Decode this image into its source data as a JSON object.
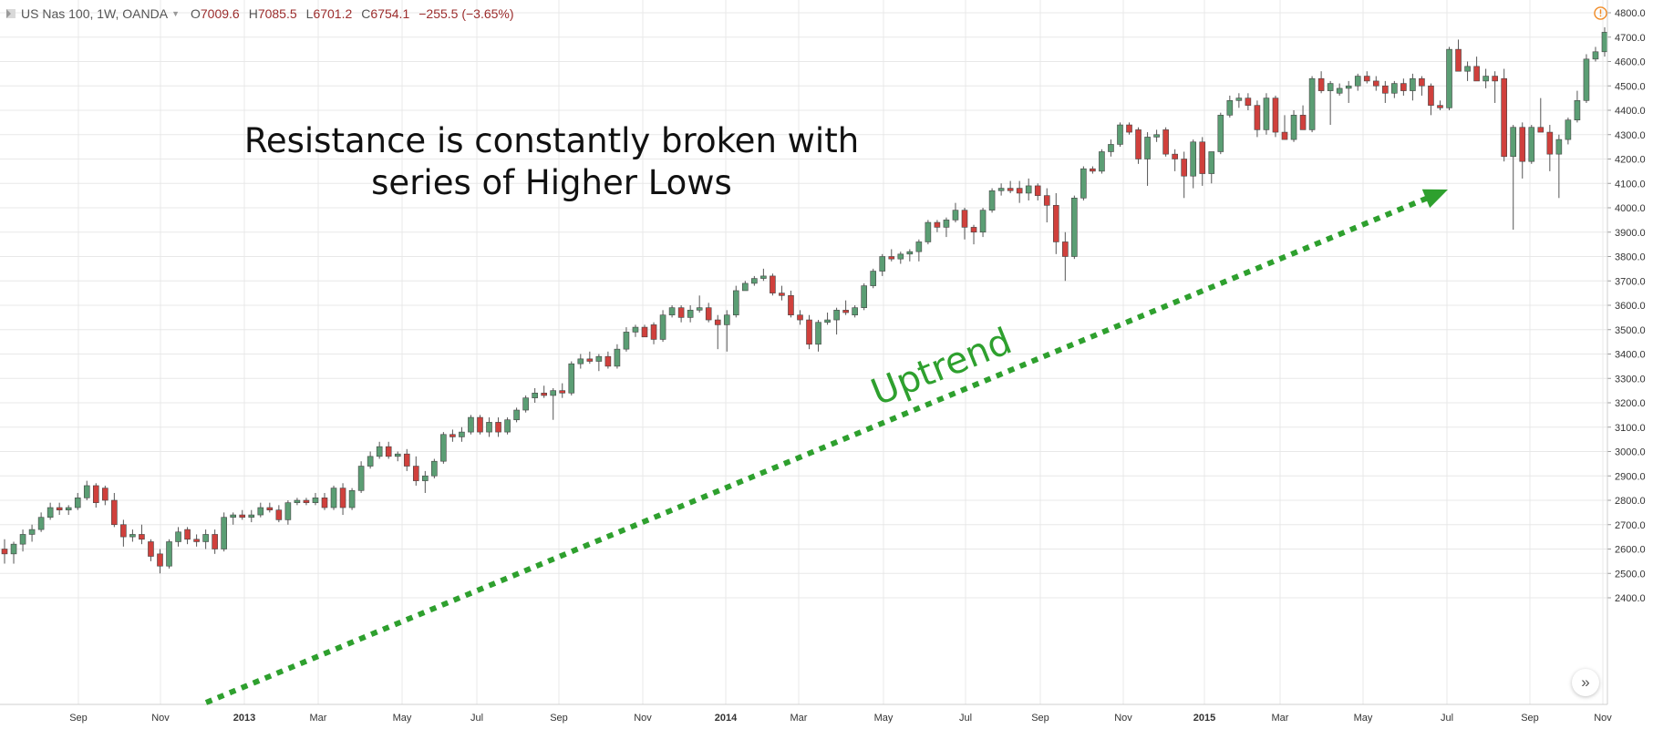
{
  "header": {
    "symbol": "US Nas 100, 1W, OANDA",
    "open_label": "O",
    "open": "7009.6",
    "high_label": "H",
    "high": "7085.5",
    "low_label": "L",
    "low": "6701.2",
    "close_label": "C",
    "close": "6754.1",
    "change": "−255.5 (−3.65%)"
  },
  "annotation": {
    "line1": "Resistance is constantly broken with",
    "line2": "series of Higher Lows",
    "trend_label": "Uptrend"
  },
  "colors": {
    "up": "#5b9e74",
    "down": "#d0403c",
    "wick": "#555555",
    "grid": "#e8e8e8",
    "trend": "#2ea02e",
    "axis_text": "#333333",
    "warning": "#f08a24"
  },
  "icons": {
    "navigate": "double-chevron-right-icon",
    "warning": "alert-circle-icon"
  },
  "chart_data": {
    "type": "candlestick",
    "title": "US Nas 100, 1W, OANDA",
    "y_ticks": [
      2400,
      2500,
      2600,
      2700,
      2800,
      2900,
      3000,
      3100,
      3200,
      3300,
      3400,
      3500,
      3600,
      3700,
      3800,
      3900,
      4000,
      4100,
      4200,
      4300,
      4400,
      4500,
      4600,
      4700,
      4800
    ],
    "ylim": [
      2360,
      4860
    ],
    "x_tick_labels": [
      "Sep",
      "Nov",
      "2013",
      "Mar",
      "May",
      "Jul",
      "Sep",
      "Nov",
      "2014",
      "Mar",
      "May",
      "Jul",
      "Sep",
      "Nov",
      "2015",
      "Mar",
      "May",
      "Jul",
      "Sep",
      "Nov"
    ],
    "grid": true,
    "candles": [
      [
        2600,
        2640,
        2540,
        2580
      ],
      [
        2580,
        2630,
        2540,
        2620
      ],
      [
        2620,
        2680,
        2590,
        2660
      ],
      [
        2660,
        2700,
        2630,
        2680
      ],
      [
        2680,
        2750,
        2670,
        2730
      ],
      [
        2730,
        2790,
        2720,
        2770
      ],
      [
        2770,
        2790,
        2740,
        2760
      ],
      [
        2760,
        2780,
        2740,
        2770
      ],
      [
        2770,
        2830,
        2760,
        2810
      ],
      [
        2810,
        2880,
        2800,
        2860
      ],
      [
        2860,
        2870,
        2770,
        2790
      ],
      [
        2850,
        2860,
        2780,
        2800
      ],
      [
        2800,
        2830,
        2690,
        2700
      ],
      [
        2700,
        2720,
        2610,
        2650
      ],
      [
        2650,
        2680,
        2630,
        2660
      ],
      [
        2660,
        2700,
        2620,
        2640
      ],
      [
        2630,
        2640,
        2550,
        2570
      ],
      [
        2580,
        2600,
        2500,
        2530
      ],
      [
        2530,
        2640,
        2520,
        2630
      ],
      [
        2630,
        2690,
        2610,
        2670
      ],
      [
        2680,
        2690,
        2620,
        2640
      ],
      [
        2640,
        2660,
        2610,
        2630
      ],
      [
        2630,
        2680,
        2600,
        2660
      ],
      [
        2660,
        2680,
        2580,
        2600
      ],
      [
        2600,
        2750,
        2590,
        2730
      ],
      [
        2730,
        2750,
        2700,
        2740
      ],
      [
        2740,
        2760,
        2720,
        2730
      ],
      [
        2730,
        2760,
        2710,
        2740
      ],
      [
        2740,
        2790,
        2730,
        2770
      ],
      [
        2770,
        2790,
        2750,
        2760
      ],
      [
        2760,
        2780,
        2710,
        2720
      ],
      [
        2720,
        2800,
        2700,
        2790
      ],
      [
        2790,
        2810,
        2780,
        2800
      ],
      [
        2800,
        2810,
        2780,
        2790
      ],
      [
        2790,
        2830,
        2780,
        2810
      ],
      [
        2810,
        2830,
        2760,
        2770
      ],
      [
        2770,
        2860,
        2760,
        2850
      ],
      [
        2850,
        2870,
        2740,
        2770
      ],
      [
        2770,
        2850,
        2760,
        2840
      ],
      [
        2840,
        2960,
        2830,
        2940
      ],
      [
        2940,
        3000,
        2930,
        2980
      ],
      [
        2980,
        3040,
        2970,
        3020
      ],
      [
        3020,
        3040,
        2970,
        2980
      ],
      [
        2980,
        3000,
        2960,
        2990
      ],
      [
        2990,
        3010,
        2920,
        2940
      ],
      [
        2940,
        2980,
        2860,
        2880
      ],
      [
        2880,
        2920,
        2830,
        2900
      ],
      [
        2900,
        2970,
        2890,
        2960
      ],
      [
        2960,
        3080,
        2950,
        3070
      ],
      [
        3070,
        3090,
        3040,
        3060
      ],
      [
        3060,
        3100,
        3040,
        3080
      ],
      [
        3080,
        3150,
        3070,
        3140
      ],
      [
        3140,
        3150,
        3070,
        3080
      ],
      [
        3080,
        3140,
        3060,
        3120
      ],
      [
        3120,
        3140,
        3060,
        3080
      ],
      [
        3080,
        3140,
        3070,
        3130
      ],
      [
        3130,
        3180,
        3120,
        3170
      ],
      [
        3170,
        3230,
        3160,
        3220
      ],
      [
        3220,
        3260,
        3200,
        3240
      ],
      [
        3240,
        3270,
        3220,
        3230
      ],
      [
        3230,
        3260,
        3130,
        3250
      ],
      [
        3250,
        3280,
        3220,
        3240
      ],
      [
        3240,
        3370,
        3230,
        3360
      ],
      [
        3360,
        3400,
        3340,
        3380
      ],
      [
        3380,
        3410,
        3360,
        3370
      ],
      [
        3370,
        3400,
        3330,
        3390
      ],
      [
        3390,
        3410,
        3340,
        3350
      ],
      [
        3350,
        3440,
        3340,
        3420
      ],
      [
        3420,
        3510,
        3410,
        3490
      ],
      [
        3490,
        3520,
        3470,
        3510
      ],
      [
        3510,
        3520,
        3480,
        3470
      ],
      [
        3520,
        3530,
        3440,
        3460
      ],
      [
        3460,
        3580,
        3450,
        3560
      ],
      [
        3560,
        3600,
        3550,
        3590
      ],
      [
        3590,
        3600,
        3530,
        3550
      ],
      [
        3550,
        3600,
        3530,
        3580
      ],
      [
        3580,
        3640,
        3570,
        3590
      ],
      [
        3590,
        3610,
        3530,
        3540
      ],
      [
        3540,
        3560,
        3420,
        3520
      ],
      [
        3520,
        3580,
        3410,
        3560
      ],
      [
        3560,
        3680,
        3550,
        3660
      ],
      [
        3660,
        3700,
        3660,
        3690
      ],
      [
        3690,
        3720,
        3680,
        3710
      ],
      [
        3710,
        3750,
        3700,
        3720
      ],
      [
        3720,
        3730,
        3640,
        3650
      ],
      [
        3650,
        3680,
        3620,
        3640
      ],
      [
        3640,
        3660,
        3550,
        3560
      ],
      [
        3560,
        3580,
        3520,
        3540
      ],
      [
        3540,
        3560,
        3420,
        3440
      ],
      [
        3440,
        3540,
        3410,
        3530
      ],
      [
        3530,
        3570,
        3520,
        3540
      ],
      [
        3540,
        3590,
        3480,
        3580
      ],
      [
        3580,
        3620,
        3560,
        3570
      ],
      [
        3560,
        3600,
        3550,
        3590
      ],
      [
        3590,
        3690,
        3580,
        3680
      ],
      [
        3680,
        3750,
        3670,
        3740
      ],
      [
        3740,
        3810,
        3720,
        3800
      ],
      [
        3800,
        3830,
        3780,
        3790
      ],
      [
        3790,
        3820,
        3770,
        3810
      ],
      [
        3810,
        3830,
        3780,
        3820
      ],
      [
        3820,
        3870,
        3780,
        3860
      ],
      [
        3860,
        3950,
        3850,
        3940
      ],
      [
        3940,
        3950,
        3900,
        3920
      ],
      [
        3920,
        3960,
        3880,
        3950
      ],
      [
        3950,
        4020,
        3940,
        3990
      ],
      [
        3990,
        4000,
        3870,
        3920
      ],
      [
        3920,
        3930,
        3850,
        3900
      ],
      [
        3900,
        4000,
        3880,
        3990
      ],
      [
        3990,
        4080,
        3980,
        4070
      ],
      [
        4070,
        4100,
        4050,
        4080
      ],
      [
        4080,
        4110,
        4060,
        4070
      ],
      [
        4080,
        4110,
        4020,
        4060
      ],
      [
        4060,
        4120,
        4030,
        4090
      ],
      [
        4090,
        4100,
        4030,
        4050
      ],
      [
        4050,
        4080,
        3940,
        4010
      ],
      [
        4010,
        4060,
        3810,
        3860
      ],
      [
        3860,
        3900,
        3700,
        3800
      ],
      [
        3800,
        4050,
        3790,
        4040
      ],
      [
        4040,
        4170,
        4030,
        4160
      ],
      [
        4160,
        4170,
        4140,
        4150
      ],
      [
        4150,
        4240,
        4140,
        4230
      ],
      [
        4230,
        4280,
        4210,
        4260
      ],
      [
        4260,
        4350,
        4250,
        4340
      ],
      [
        4340,
        4350,
        4300,
        4310
      ],
      [
        4320,
        4330,
        4180,
        4200
      ],
      [
        4200,
        4310,
        4090,
        4290
      ],
      [
        4290,
        4320,
        4270,
        4300
      ],
      [
        4320,
        4330,
        4210,
        4220
      ],
      [
        4220,
        4240,
        4150,
        4200
      ],
      [
        4200,
        4230,
        4040,
        4130
      ],
      [
        4130,
        4280,
        4080,
        4270
      ],
      [
        4270,
        4290,
        4090,
        4140
      ],
      [
        4140,
        4230,
        4100,
        4230
      ],
      [
        4230,
        4390,
        4220,
        4380
      ],
      [
        4380,
        4460,
        4370,
        4440
      ],
      [
        4440,
        4470,
        4410,
        4450
      ],
      [
        4450,
        4470,
        4400,
        4420
      ],
      [
        4420,
        4440,
        4290,
        4320
      ],
      [
        4320,
        4470,
        4300,
        4450
      ],
      [
        4450,
        4460,
        4290,
        4310
      ],
      [
        4310,
        4380,
        4280,
        4280
      ],
      [
        4280,
        4400,
        4270,
        4380
      ],
      [
        4380,
        4420,
        4320,
        4320
      ],
      [
        4320,
        4540,
        4310,
        4530
      ],
      [
        4530,
        4560,
        4470,
        4480
      ],
      [
        4480,
        4520,
        4340,
        4510
      ],
      [
        4470,
        4510,
        4460,
        4490
      ],
      [
        4490,
        4520,
        4430,
        4500
      ],
      [
        4500,
        4550,
        4480,
        4540
      ],
      [
        4540,
        4560,
        4510,
        4520
      ],
      [
        4520,
        4540,
        4480,
        4500
      ],
      [
        4500,
        4520,
        4430,
        4470
      ],
      [
        4470,
        4520,
        4450,
        4510
      ],
      [
        4510,
        4530,
        4460,
        4480
      ],
      [
        4480,
        4550,
        4440,
        4530
      ],
      [
        4530,
        4540,
        4460,
        4500
      ],
      [
        4500,
        4510,
        4380,
        4420
      ],
      [
        4420,
        4440,
        4400,
        4410
      ],
      [
        4410,
        4660,
        4400,
        4650
      ],
      [
        4650,
        4690,
        4560,
        4560
      ],
      [
        4560,
        4600,
        4520,
        4580
      ],
      [
        4580,
        4620,
        4520,
        4520
      ],
      [
        4520,
        4570,
        4490,
        4540
      ],
      [
        4540,
        4560,
        4430,
        4520
      ],
      [
        4530,
        4570,
        4190,
        4210
      ],
      [
        4210,
        4340,
        3910,
        4330
      ],
      [
        4330,
        4350,
        4120,
        4190
      ],
      [
        4190,
        4340,
        4180,
        4330
      ],
      [
        4330,
        4450,
        4320,
        4310
      ],
      [
        4310,
        4340,
        4150,
        4220
      ],
      [
        4220,
        4300,
        4040,
        4280
      ],
      [
        4280,
        4370,
        4260,
        4360
      ],
      [
        4360,
        4480,
        4350,
        4440
      ],
      [
        4440,
        4630,
        4430,
        4610
      ],
      [
        4610,
        4660,
        4600,
        4640
      ],
      [
        4640,
        4740,
        4620,
        4720
      ]
    ]
  }
}
